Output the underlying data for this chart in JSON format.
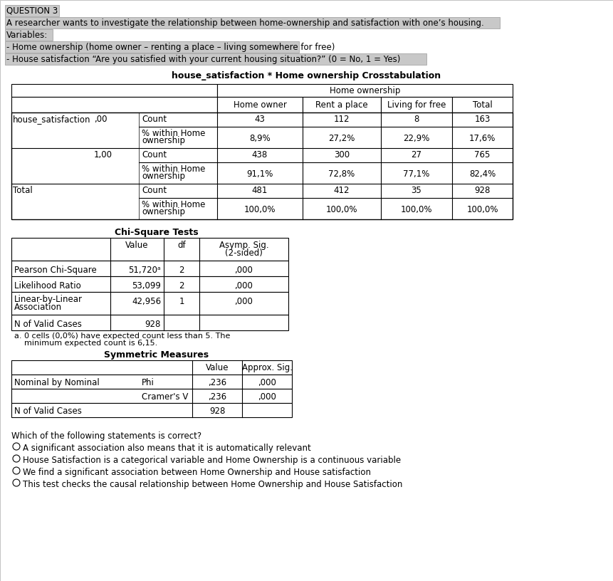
{
  "title_question": "QUESTION 3",
  "intro_line1": "A researcher wants to investigate the relationship between home-ownership and satisfaction with one’s housing.",
  "intro_line2": "Variables:",
  "intro_line3": "- Home ownership (home owner – renting a place – living somewhere for free)",
  "intro_line4": "- House satisfaction “Are you satisfied with your current housing situation?” (0 = No, 1 = Yes)",
  "crosstab_title": "house_satisfaction * Home ownership Crosstabulation",
  "chi_square_title": "Chi-Square Tests",
  "sym_measures_title": "Symmetric Measures",
  "question_text": "Which of the following statements is correct?",
  "options": [
    "A significant association also means that it is automatically relevant",
    "House Satisfaction is a categorical variable and Home Ownership is a continuous variable",
    "We find a significant association between Home Ownership and House satisfaction",
    "This test checks the causal relationship between Home Ownership and House Satisfaction"
  ],
  "bg_gray": "#c8c8c8",
  "white": "#ffffff",
  "black": "#000000"
}
